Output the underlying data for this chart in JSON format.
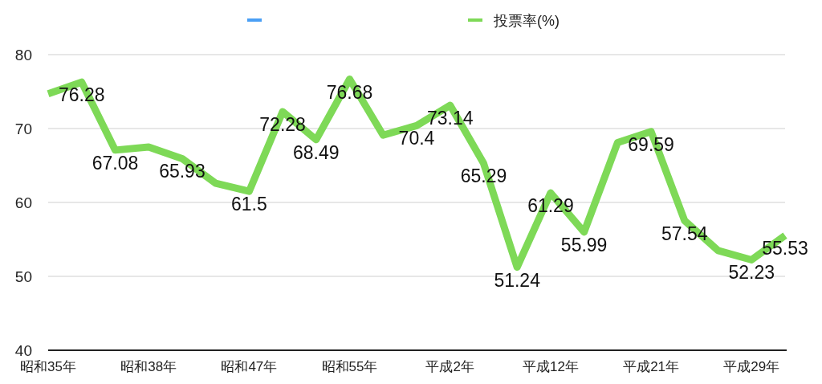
{
  "chart_data": {
    "type": "line",
    "categories": [
      "昭和35年",
      null,
      null,
      "昭和38年",
      null,
      null,
      "昭和47年",
      null,
      null,
      "昭和55年",
      null,
      null,
      "平成2年",
      null,
      null,
      "平成12年",
      null,
      null,
      "平成21年",
      null,
      null,
      "平成29年",
      null
    ],
    "series": [
      {
        "color": "#4a9ff5",
        "values": [
          null,
          null,
          null,
          null,
          null,
          null,
          null,
          null,
          null,
          null,
          null,
          null,
          null,
          null,
          null,
          null,
          null,
          null,
          null,
          null,
          null,
          null,
          null
        ]
      },
      {
        "name": "投票率(%)",
        "color": "#7ed957",
        "values": [
          74.7,
          76.28,
          67.08,
          67.5,
          65.93,
          62.6,
          61.5,
          72.28,
          68.49,
          76.68,
          69.1,
          70.4,
          73.14,
          65.29,
          51.24,
          61.29,
          55.99,
          68.1,
          69.59,
          57.54,
          53.5,
          52.23,
          55.53
        ],
        "value_labels": [
          null,
          "76.28",
          "67.08",
          null,
          "65.93",
          null,
          "61.5",
          "72.28",
          "68.49",
          "76.68",
          null,
          "70.4",
          "73.14",
          "65.29",
          "51.24",
          "61.29",
          "55.99",
          null,
          "69.59",
          "57.54",
          null,
          "52.23",
          "55.53"
        ]
      }
    ],
    "ylim": [
      40,
      80
    ],
    "yticks": [
      40,
      50,
      60,
      70,
      80
    ],
    "grid": "y",
    "legend": "top",
    "marker": "none",
    "line_style": "solid"
  }
}
